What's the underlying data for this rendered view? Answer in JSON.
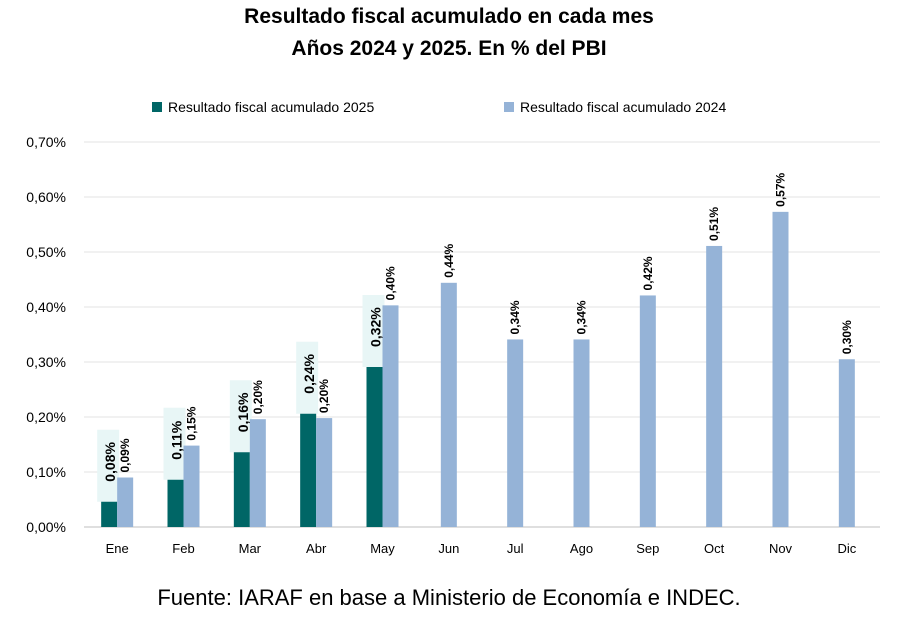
{
  "chart_data": {
    "type": "bar",
    "title": "Resultado fiscal acumulado en cada mes",
    "subtitle": "Años 2024 y 2025. En % del PBI",
    "categories": [
      "Ene",
      "Feb",
      "Mar",
      "Abr",
      "May",
      "Jun",
      "Jul",
      "Ago",
      "Sep",
      "Oct",
      "Nov",
      "Dic"
    ],
    "series": [
      {
        "name": "Resultado fiscal acumulado 2025",
        "color": "#006666",
        "values": [
          0.075,
          0.115,
          0.165,
          0.235,
          0.32,
          null,
          null,
          null,
          null,
          null,
          null,
          null
        ],
        "labels": [
          "0,08%",
          "0,11%",
          "0,16%",
          "0,24%",
          "0,32%",
          null,
          null,
          null,
          null,
          null,
          null,
          null
        ]
      },
      {
        "name": "Resultado fiscal acumulado 2024",
        "color": "#95b3d7",
        "values": [
          0.09,
          0.148,
          0.196,
          0.198,
          0.403,
          0.444,
          0.341,
          0.341,
          0.421,
          0.511,
          0.573,
          0.305
        ],
        "labels": [
          "0,09%",
          "0,15%",
          "0,20%",
          "0,20%",
          "0,40%",
          "0,44%",
          "0,34%",
          "0,34%",
          "0,42%",
          "0,51%",
          "0,57%",
          "0,30%"
        ]
      }
    ],
    "yticks": [
      "0,00%",
      "0,10%",
      "0,20%",
      "0,30%",
      "0,40%",
      "0,50%",
      "0,60%",
      "0,70%"
    ],
    "ylim": [
      0,
      0.7
    ],
    "grid": true,
    "legend_position": "top"
  },
  "source": "Fuente: IARAF en base a Ministerio de Economía e INDEC."
}
